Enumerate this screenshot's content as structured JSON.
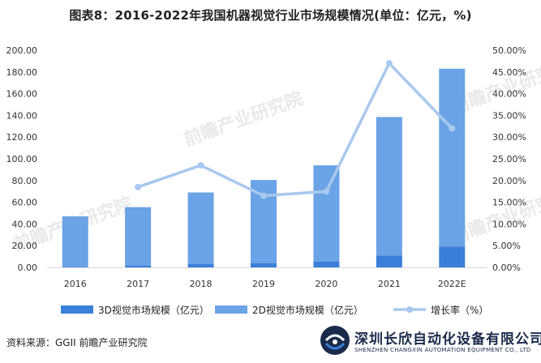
{
  "chart_data": {
    "type": "bar",
    "title": "图表8：2016-2022年我国机器视觉行业市场规模情况(单位：亿元，%)",
    "categories": [
      "2016",
      "2017",
      "2018",
      "2019",
      "2020",
      "2021",
      "2022E"
    ],
    "series": [
      {
        "name": "3D视觉市场规模（亿元）",
        "type": "bar",
        "axis": "left",
        "values": [
          0.5,
          1.5,
          3.0,
          4.0,
          5.5,
          11.0,
          19.0
        ],
        "color": "#3a7fd9"
      },
      {
        "name": "2D视觉市场规模（亿元）",
        "type": "bar",
        "axis": "left",
        "values": [
          46.5,
          54.0,
          66.0,
          76.5,
          88.5,
          127.5,
          164.0
        ],
        "color": "#6aa3e6"
      },
      {
        "name": "增长率（%）",
        "type": "line",
        "axis": "right",
        "values": [
          null,
          18.5,
          23.5,
          16.5,
          17.5,
          47.0,
          32.0
        ],
        "color": "#a9c8ee"
      }
    ],
    "ylim_left": [
      0,
      200
    ],
    "ylim_right": [
      0,
      50
    ],
    "yticks_left": [
      "0.00",
      "20.00",
      "40.00",
      "60.00",
      "80.00",
      "100.00",
      "120.00",
      "140.00",
      "160.00",
      "180.00",
      "200.00"
    ],
    "yticks_right": [
      "0.00%",
      "5.00%",
      "10.00%",
      "15.00%",
      "20.00%",
      "25.00%",
      "30.00%",
      "35.00%",
      "40.00%",
      "45.00%",
      "50.00%"
    ],
    "legend_position": "bottom",
    "grid": false
  },
  "footer": {
    "source": "资料来源：GGII 前瞻产业研究院",
    "brand_name": "深圳长欣自动化设备有限公司",
    "brand_sub": "SHENZHEN CHANGXIN AUTOMATION EQUIPMENT CO., LTD"
  },
  "watermark": "前瞻产业研究院"
}
